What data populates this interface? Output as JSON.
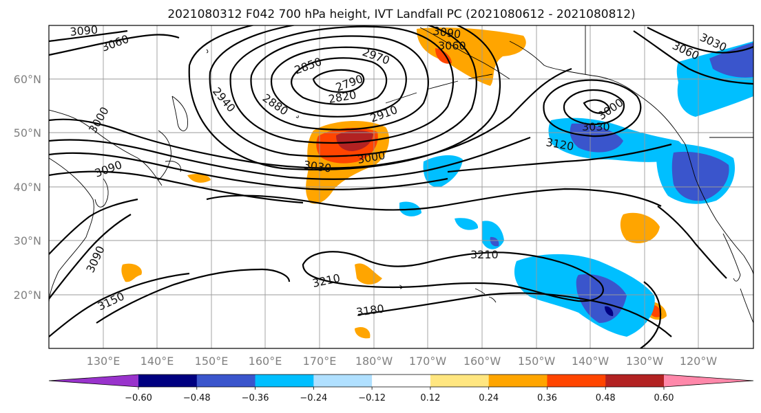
{
  "title": "2021080312 F042 700 hPa height, IVT Landfall PC (2021080612 - 2021080812)",
  "lat_ticks": [
    "60°N",
    "50°N",
    "40°N",
    "30°N",
    "20°N"
  ],
  "lon_ticks": [
    "130°E",
    "140°E",
    "150°E",
    "160°E",
    "170°E",
    "180°W",
    "170°W",
    "160°W",
    "150°W",
    "140°W",
    "130°W",
    "120°W"
  ],
  "colorbar": {
    "ticks": [
      "−0.60",
      "−0.48",
      "−0.36",
      "−0.24",
      "−0.12",
      "0.12",
      "0.24",
      "0.36",
      "0.48",
      "0.60"
    ],
    "colors": [
      "#9933cc",
      "#000080",
      "#3a55cc",
      "#00bfff",
      "#b0e0ff",
      "#ffffff",
      "#ffe680",
      "#ffa500",
      "#ff4500",
      "#b22222",
      "#ff88aa"
    ]
  },
  "contour_labels": [
    "3090",
    "3060",
    "2940",
    "2850",
    "2880",
    "2790",
    "2820",
    "2970",
    "3090",
    "3060",
    "2910",
    "3000",
    "3030",
    "3000",
    "3090",
    "3030",
    "3000",
    "3120",
    "3060",
    "3030",
    "3090",
    "3150",
    "3210",
    "3210",
    "3180"
  ]
}
